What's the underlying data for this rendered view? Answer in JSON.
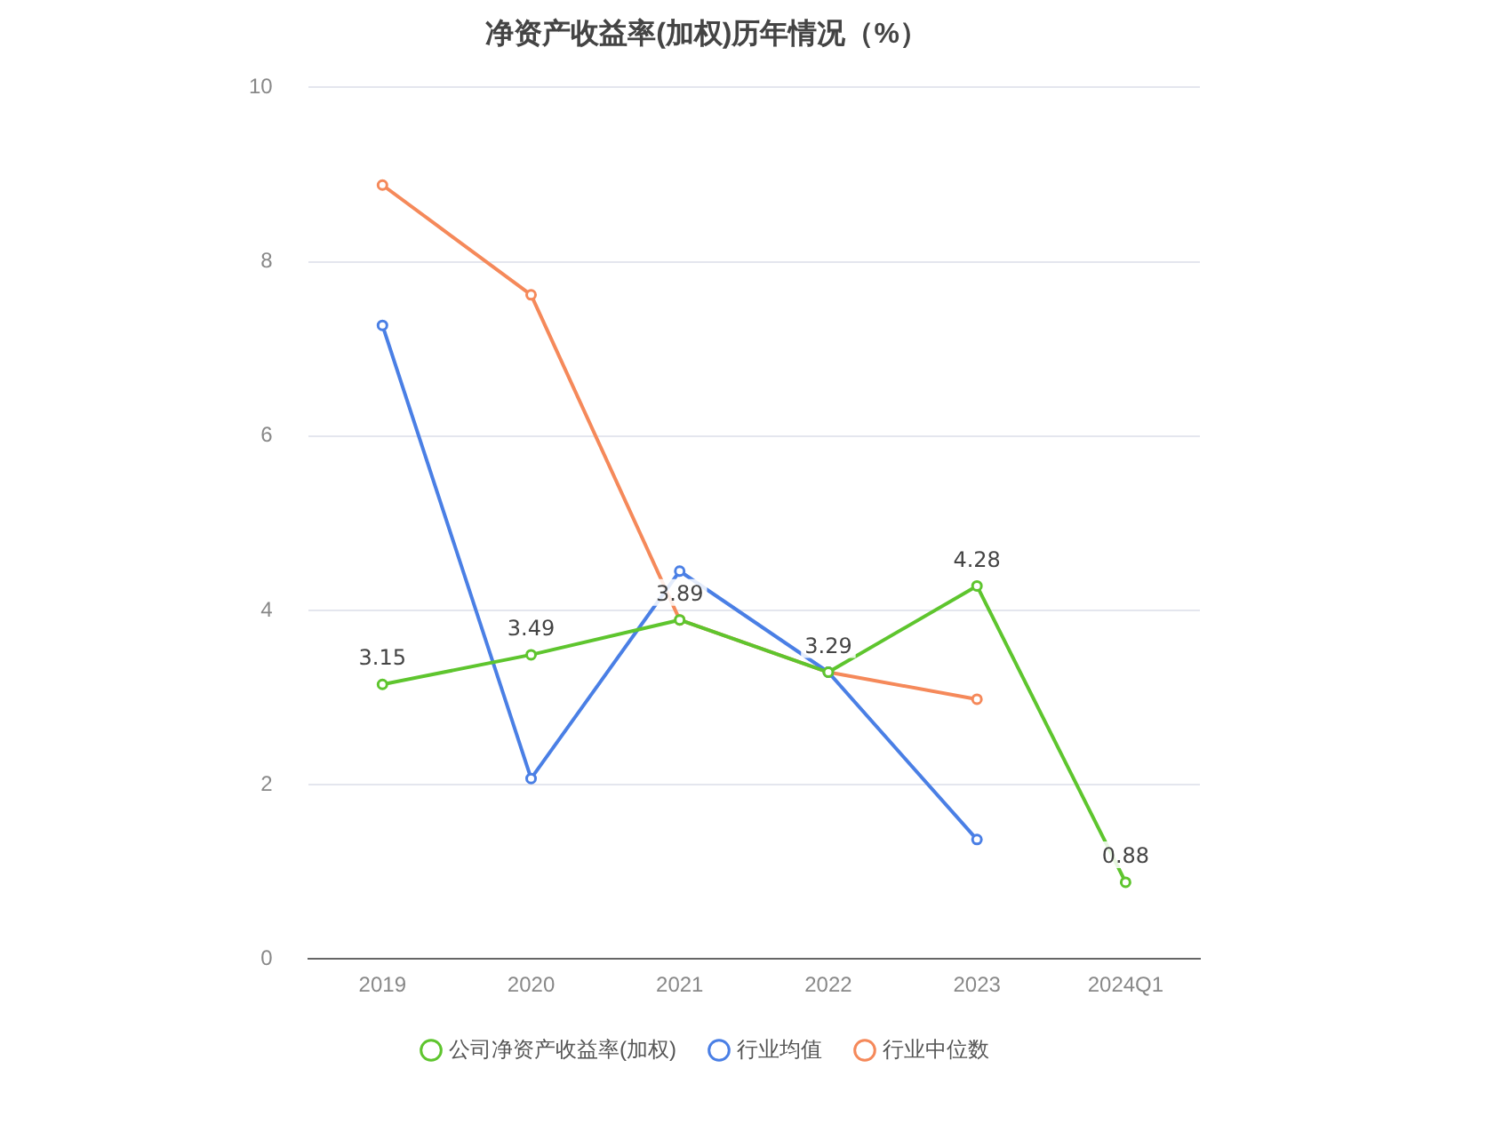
{
  "chart_data": {
    "type": "line",
    "title": "净资产收益率(加权)历年情况（%）",
    "categories": [
      "2019",
      "2020",
      "2021",
      "2022",
      "2023",
      "2024Q1"
    ],
    "series": [
      {
        "name": "公司净资产收益率(加权)",
        "color": "#5ec52e",
        "values": [
          3.15,
          3.49,
          3.89,
          3.29,
          4.28,
          0.88
        ],
        "value_labels": [
          "3.15",
          "3.49",
          "3.89",
          "3.29",
          "4.28",
          "0.88"
        ]
      },
      {
        "name": "行业均值",
        "color": "#4a7fe5",
        "values": [
          7.27,
          2.07,
          4.45,
          3.29,
          1.37,
          null
        ]
      },
      {
        "name": "行业中位数",
        "color": "#f5895a",
        "values": [
          8.88,
          7.62,
          3.89,
          3.29,
          2.98,
          null
        ]
      }
    ],
    "ylim": [
      0,
      10
    ],
    "yticks": [
      0,
      2,
      4,
      6,
      8,
      10
    ],
    "grid": "y",
    "legend": "bottom",
    "marker": "circle",
    "line_style": "solid"
  }
}
